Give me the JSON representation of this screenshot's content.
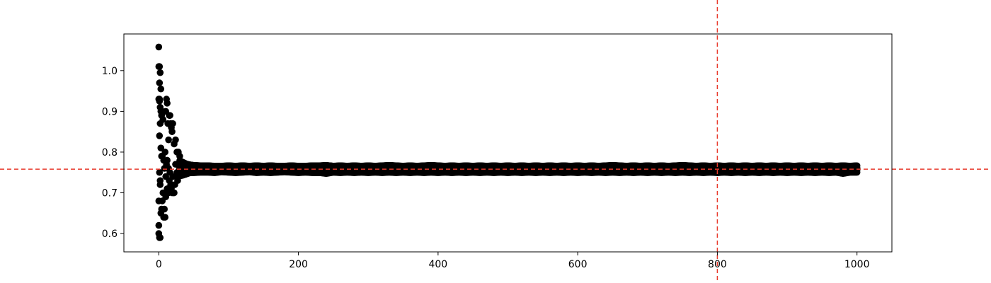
{
  "chart_data": {
    "type": "scatter",
    "title": "",
    "xlabel": "",
    "ylabel": "",
    "xlim": [
      -50,
      1050
    ],
    "ylim": [
      0.555,
      1.09
    ],
    "xticks": [
      0,
      200,
      400,
      600,
      800,
      1000
    ],
    "yticks": [
      0.6,
      0.7,
      0.8,
      0.9,
      1.0
    ],
    "ytick_labels": [
      "0.6",
      "0.7",
      "0.8",
      "0.9",
      "1.0"
    ],
    "marker_color": "#000000",
    "reference_line_color": "#e8392b",
    "reference_lines": [
      {
        "orientation": "horizontal",
        "value": 0.758
      },
      {
        "orientation": "vertical",
        "value": 800
      }
    ],
    "series": [
      {
        "x": [
          0,
          0,
          1,
          2,
          1,
          3,
          0,
          1,
          2,
          4,
          1,
          3,
          2,
          5,
          6,
          0,
          7,
          0,
          1,
          2,
          3,
          0,
          4,
          5,
          8,
          9,
          10,
          11,
          12,
          13,
          14,
          15,
          16,
          17,
          18,
          19,
          20,
          22,
          24,
          26,
          28,
          30,
          1,
          3,
          5,
          7,
          9,
          11,
          13,
          15,
          17,
          19,
          21,
          23,
          25,
          27,
          29,
          2,
          6,
          10,
          14,
          18,
          8,
          12,
          16,
          20,
          24,
          30,
          4,
          1,
          2,
          12,
          18,
          22,
          26,
          10,
          14
        ],
        "y": [
          1.058,
          1.01,
          1.01,
          0.995,
          0.97,
          0.955,
          0.93,
          0.925,
          0.91,
          0.89,
          0.93,
          0.9,
          0.87,
          0.9,
          0.88,
          0.62,
          0.64,
          0.6,
          0.59,
          0.59,
          0.65,
          0.68,
          0.66,
          0.68,
          0.66,
          0.64,
          0.9,
          0.93,
          0.92,
          0.87,
          0.83,
          0.89,
          0.89,
          0.87,
          0.86,
          0.85,
          0.87,
          0.82,
          0.83,
          0.8,
          0.8,
          0.79,
          0.84,
          0.81,
          0.79,
          0.78,
          0.8,
          0.77,
          0.76,
          0.73,
          0.72,
          0.7,
          0.7,
          0.72,
          0.74,
          0.73,
          0.75,
          0.72,
          0.7,
          0.69,
          0.7,
          0.71,
          0.76,
          0.78,
          0.75,
          0.74,
          0.77,
          0.76,
          0.79,
          0.75,
          0.73,
          0.71,
          0.72,
          0.7,
          0.75,
          0.74,
          0.76
        ]
      },
      {
        "x": [
          30,
          35,
          40,
          45,
          50,
          60,
          70,
          80,
          90,
          100,
          110,
          120,
          130,
          140,
          150,
          160,
          170,
          180,
          190,
          200,
          210,
          220,
          230,
          240,
          250,
          260,
          270,
          280,
          290,
          300,
          310,
          320,
          330,
          340,
          350,
          360,
          370,
          380,
          390,
          400,
          410,
          420,
          430,
          440,
          450,
          460,
          470,
          480,
          490,
          500,
          510,
          520,
          530,
          540,
          550,
          560,
          570,
          580,
          590,
          600,
          610,
          620,
          630,
          640,
          650,
          660,
          670,
          680,
          690,
          700,
          710,
          720,
          730,
          740,
          750,
          760,
          770,
          780,
          790,
          800,
          810,
          820,
          830,
          840,
          850,
          860,
          870,
          880,
          890,
          900,
          910,
          920,
          930,
          940,
          950,
          960,
          970,
          980,
          990,
          1000
        ],
        "y_low": [
          0.74,
          0.742,
          0.745,
          0.748,
          0.748,
          0.749,
          0.749,
          0.748,
          0.75,
          0.749,
          0.748,
          0.749,
          0.75,
          0.748,
          0.749,
          0.748,
          0.749,
          0.75,
          0.749,
          0.748,
          0.749,
          0.748,
          0.748,
          0.746,
          0.749,
          0.748,
          0.749,
          0.748,
          0.749,
          0.748,
          0.749,
          0.748,
          0.749,
          0.748,
          0.749,
          0.748,
          0.749,
          0.748,
          0.749,
          0.748,
          0.749,
          0.748,
          0.749,
          0.748,
          0.749,
          0.748,
          0.749,
          0.748,
          0.749,
          0.748,
          0.749,
          0.748,
          0.749,
          0.748,
          0.749,
          0.748,
          0.749,
          0.748,
          0.749,
          0.748,
          0.749,
          0.748,
          0.749,
          0.748,
          0.749,
          0.748,
          0.749,
          0.748,
          0.749,
          0.748,
          0.749,
          0.748,
          0.749,
          0.748,
          0.749,
          0.748,
          0.749,
          0.748,
          0.749,
          0.748,
          0.749,
          0.748,
          0.749,
          0.748,
          0.749,
          0.748,
          0.749,
          0.748,
          0.749,
          0.748,
          0.749,
          0.748,
          0.749,
          0.748,
          0.749,
          0.748,
          0.749,
          0.746,
          0.749,
          0.749
        ],
        "y_high": [
          0.78,
          0.776,
          0.772,
          0.77,
          0.769,
          0.768,
          0.768,
          0.767,
          0.767,
          0.768,
          0.767,
          0.768,
          0.767,
          0.768,
          0.767,
          0.768,
          0.767,
          0.767,
          0.768,
          0.767,
          0.767,
          0.768,
          0.768,
          0.769,
          0.767,
          0.768,
          0.767,
          0.768,
          0.767,
          0.768,
          0.767,
          0.768,
          0.769,
          0.768,
          0.767,
          0.768,
          0.767,
          0.768,
          0.769,
          0.768,
          0.767,
          0.768,
          0.767,
          0.768,
          0.767,
          0.768,
          0.767,
          0.768,
          0.767,
          0.768,
          0.767,
          0.768,
          0.767,
          0.768,
          0.767,
          0.768,
          0.767,
          0.768,
          0.767,
          0.768,
          0.767,
          0.768,
          0.767,
          0.768,
          0.769,
          0.768,
          0.767,
          0.768,
          0.767,
          0.768,
          0.767,
          0.768,
          0.767,
          0.768,
          0.769,
          0.768,
          0.767,
          0.768,
          0.767,
          0.768,
          0.767,
          0.768,
          0.767,
          0.768,
          0.767,
          0.768,
          0.767,
          0.768,
          0.767,
          0.768,
          0.767,
          0.768,
          0.767,
          0.768,
          0.767,
          0.768,
          0.767,
          0.768,
          0.767,
          0.768
        ]
      }
    ]
  }
}
